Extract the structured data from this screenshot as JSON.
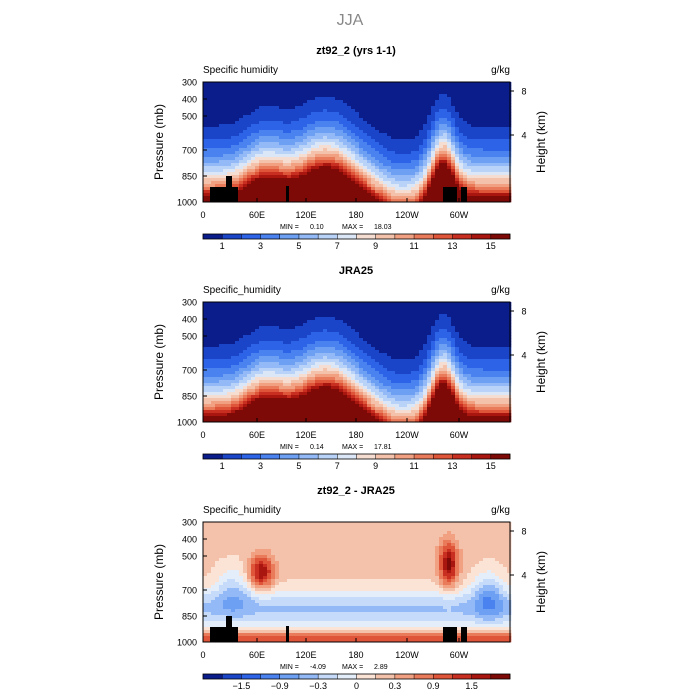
{
  "figure_title": "JJA",
  "chart_data": [
    {
      "type": "heatmap",
      "title": "zt92_2 (yrs 1-1)",
      "left_label": "Specific humidity",
      "units": "g/kg",
      "ylabel": "Pressure (mb)",
      "right_label": "Height (km)",
      "y_ticks": [
        "300",
        "400",
        "500",
        "700",
        "850",
        "1000"
      ],
      "height_ticks": [
        "8",
        "4"
      ],
      "x_ticks": [
        "0",
        "60E",
        "120E",
        "180",
        "120W",
        "60W"
      ],
      "min_label": "MIN =",
      "min_value": "0.10",
      "max_label": "MAX =",
      "max_value": "18.03",
      "colorbar_ticks": [
        "1",
        "3",
        "5",
        "7",
        "9",
        "11",
        "13",
        "15"
      ],
      "colorbar_colors": [
        "#0a1d8a",
        "#1b45c8",
        "#2d63e6",
        "#4a82ef",
        "#6d9ff3",
        "#93b9f6",
        "#b9d2f8",
        "#dbe6f6",
        "#f6ddd2",
        "#f4c1aa",
        "#f1a081",
        "#ea7b5a",
        "#de553a",
        "#c92f21",
        "#a8160f",
        "#7d0a07"
      ],
      "cb_min": 0,
      "cb_max": 16,
      "masked": true
    },
    {
      "type": "heatmap",
      "title": "JRA25",
      "left_label": "Specific_humidity",
      "units": "g/kg",
      "ylabel": "Pressure (mb)",
      "right_label": "Height (km)",
      "y_ticks": [
        "300",
        "400",
        "500",
        "700",
        "850",
        "1000"
      ],
      "height_ticks": [
        "8",
        "4"
      ],
      "x_ticks": [
        "0",
        "60E",
        "120E",
        "180",
        "120W",
        "60W"
      ],
      "min_label": "MIN =",
      "min_value": "0.14",
      "max_label": "MAX =",
      "max_value": "17.81",
      "colorbar_ticks": [
        "1",
        "3",
        "5",
        "7",
        "9",
        "11",
        "13",
        "15"
      ],
      "colorbar_colors": [
        "#0a1d8a",
        "#1b45c8",
        "#2d63e6",
        "#4a82ef",
        "#6d9ff3",
        "#93b9f6",
        "#b9d2f8",
        "#dbe6f6",
        "#f6ddd2",
        "#f4c1aa",
        "#f1a081",
        "#ea7b5a",
        "#de553a",
        "#c92f21",
        "#a8160f",
        "#7d0a07"
      ],
      "cb_min": 0,
      "cb_max": 16,
      "masked": false
    },
    {
      "type": "heatmap",
      "title": "zt92_2 - JRA25",
      "left_label": "Specific_humidity",
      "units": "g/kg",
      "ylabel": "Pressure (mb)",
      "right_label": "Height (km)",
      "y_ticks": [
        "300",
        "400",
        "500",
        "700",
        "850",
        "1000"
      ],
      "height_ticks": [
        "8",
        "4"
      ],
      "x_ticks": [
        "0",
        "60E",
        "120E",
        "180",
        "120W",
        "60W"
      ],
      "min_label": "MIN =",
      "min_value": "-4.09",
      "max_label": "MAX =",
      "max_value": "2.89",
      "colorbar_ticks": [
        "−1.5",
        "−0.9",
        "−0.3",
        "0",
        "0.3",
        "0.9",
        "1.5"
      ],
      "colorbar_colors": [
        "#0a1d8a",
        "#1b45c8",
        "#2d63e6",
        "#4a82ef",
        "#6d9ff3",
        "#93b9f6",
        "#c6dbf9",
        "#e4eefb",
        "#fbe3d6",
        "#f4c1aa",
        "#f1a081",
        "#ea7b5a",
        "#de553a",
        "#c92f21",
        "#a8160f",
        "#7d0a07"
      ],
      "cb_min": -2.1,
      "cb_max": 2.1,
      "masked": true
    }
  ]
}
